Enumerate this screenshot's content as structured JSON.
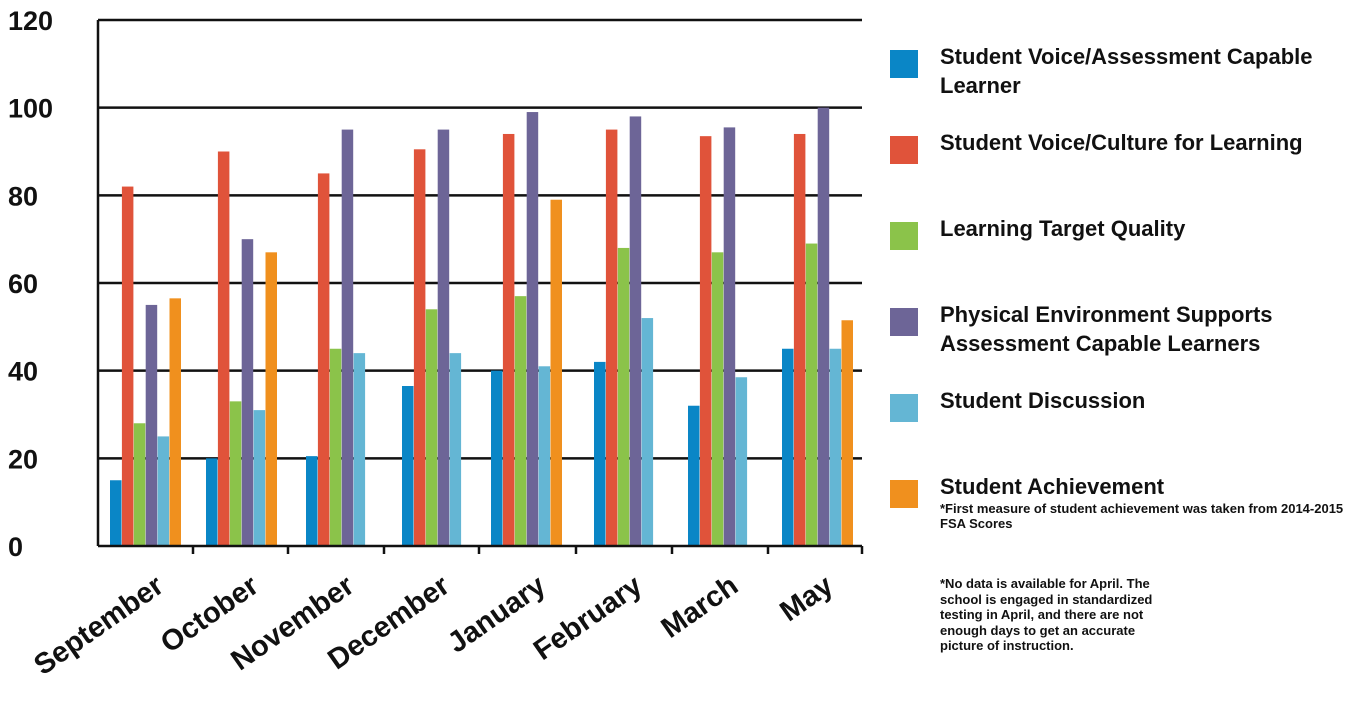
{
  "chart_data": {
    "type": "bar",
    "categories": [
      "September",
      "October",
      "November",
      "December",
      "January",
      "February",
      "March",
      "May"
    ],
    "ylim": [
      0,
      120
    ],
    "yticks": [
      0,
      20,
      40,
      60,
      80,
      100,
      120
    ],
    "grid": true,
    "legend_position": "right",
    "series": [
      {
        "name": "Student Voice/Assessment Capable Learner",
        "color": "#0a86c6",
        "values": [
          15,
          20,
          20.5,
          36.5,
          40,
          42,
          32,
          45
        ]
      },
      {
        "name": "Student Voice/Culture for Learning",
        "color": "#e0533a",
        "values": [
          82,
          90,
          85,
          90.5,
          94,
          95,
          93.5,
          94
        ]
      },
      {
        "name": "Learning Target Quality",
        "color": "#8bc34a",
        "values": [
          28,
          33,
          45,
          54,
          57,
          68,
          67,
          69
        ]
      },
      {
        "name": "Physical Environment Supports Assessment Capable Learners",
        "color": "#6d6597",
        "values": [
          55,
          70,
          95,
          95,
          99,
          98,
          95.5,
          100
        ]
      },
      {
        "name": "Student Discussion",
        "color": "#64b6d4",
        "values": [
          25,
          31,
          44,
          44,
          41,
          52,
          38.5,
          45
        ]
      },
      {
        "name": "Student Achievement",
        "color": "#f0901e",
        "values": [
          56.5,
          67,
          null,
          null,
          79,
          null,
          null,
          51.5
        ]
      }
    ]
  },
  "legend": {
    "achievement_note": "*First measure of student achievement was taken from 2014-2015 FSA Scores"
  },
  "footnote": "*No data is available for April. The\nschool is engaged in standardized\ntesting in April, and there are not\nenough days to get an accurate\npicture of instruction."
}
